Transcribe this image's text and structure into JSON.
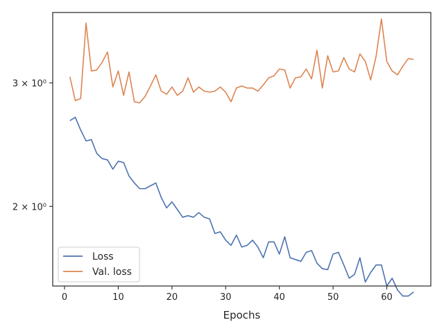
{
  "chart_data": {
    "type": "line",
    "title": "",
    "xlabel": "Epochs",
    "ylabel": "",
    "xlim": [
      -2.2,
      68.2
    ],
    "ylim": [
      1.54,
      3.78
    ],
    "yscale": "log",
    "xticks": [
      0,
      10,
      20,
      30,
      40,
      50,
      60
    ],
    "xtick_labels": [
      "0",
      "10",
      "20",
      "30",
      "40",
      "50",
      "60"
    ],
    "yticks": [
      2,
      3
    ],
    "ytick_labels": [
      "2 × 10⁰",
      "3 × 10⁰"
    ],
    "grid": false,
    "legend": {
      "position": "lower-left",
      "entries": [
        "Loss",
        "Val. loss"
      ]
    },
    "colors": {
      "Loss": "#4c72b0",
      "Val. loss": "#dd8452"
    },
    "x": [
      1,
      2,
      3,
      4,
      5,
      6,
      7,
      8,
      9,
      10,
      11,
      12,
      13,
      14,
      15,
      16,
      17,
      18,
      19,
      20,
      21,
      22,
      23,
      24,
      25,
      26,
      27,
      28,
      29,
      30,
      31,
      32,
      33,
      34,
      35,
      36,
      37,
      38,
      39,
      40,
      41,
      42,
      43,
      44,
      45,
      46,
      47,
      48,
      49,
      50,
      51,
      52,
      53,
      54,
      55,
      56,
      57,
      58,
      59,
      60,
      61,
      62,
      63,
      64,
      65
    ],
    "series": [
      {
        "name": "Loss",
        "values": [
          2.65,
          2.68,
          2.57,
          2.48,
          2.49,
          2.38,
          2.34,
          2.33,
          2.26,
          2.32,
          2.31,
          2.21,
          2.16,
          2.12,
          2.12,
          2.14,
          2.16,
          2.06,
          1.99,
          2.03,
          1.98,
          1.93,
          1.94,
          1.93,
          1.96,
          1.93,
          1.92,
          1.83,
          1.84,
          1.79,
          1.76,
          1.82,
          1.75,
          1.76,
          1.79,
          1.75,
          1.69,
          1.78,
          1.78,
          1.71,
          1.81,
          1.69,
          1.68,
          1.67,
          1.72,
          1.73,
          1.66,
          1.63,
          1.625,
          1.71,
          1.72,
          1.65,
          1.58,
          1.6,
          1.69,
          1.56,
          1.61,
          1.65,
          1.65,
          1.54,
          1.58,
          1.52,
          1.49,
          1.49,
          1.51
        ]
      },
      {
        "name": "Val. loss",
        "values": [
          3.06,
          2.83,
          2.85,
          3.65,
          3.12,
          3.13,
          3.21,
          3.32,
          2.96,
          3.12,
          2.88,
          3.11,
          2.82,
          2.81,
          2.87,
          2.97,
          3.08,
          2.92,
          2.89,
          2.96,
          2.88,
          2.92,
          3.05,
          2.91,
          2.96,
          2.92,
          2.91,
          2.92,
          2.96,
          2.91,
          2.82,
          2.95,
          2.97,
          2.95,
          2.95,
          2.92,
          2.98,
          3.05,
          3.07,
          3.14,
          3.13,
          2.95,
          3.05,
          3.06,
          3.14,
          3.04,
          3.34,
          2.95,
          3.28,
          3.11,
          3.12,
          3.26,
          3.14,
          3.11,
          3.3,
          3.22,
          3.03,
          3.27,
          3.7,
          3.22,
          3.12,
          3.08,
          3.17,
          3.25,
          3.24
        ]
      }
    ]
  }
}
